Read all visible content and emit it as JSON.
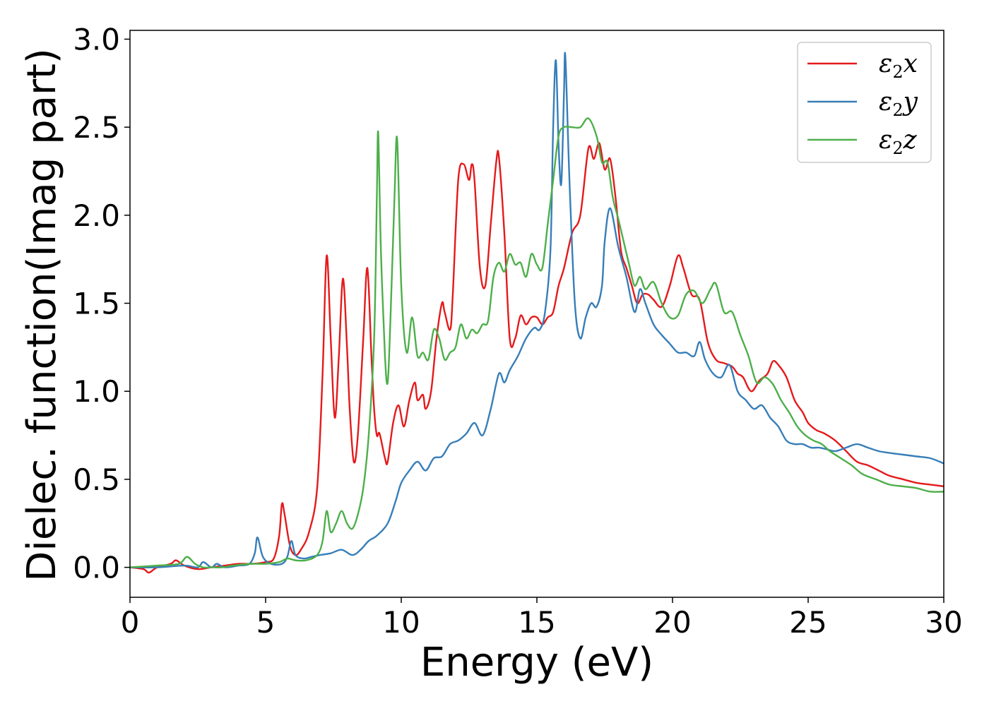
{
  "chart_data": {
    "type": "line",
    "xlabel": "Energy (eV)",
    "ylabel": "Dielec. function(Imag part)",
    "xlim": [
      0,
      30
    ],
    "ylim": [
      -0.17,
      3.05
    ],
    "xticks": [
      "0",
      "5",
      "10",
      "15",
      "20",
      "25",
      "30"
    ],
    "yticks": [
      "0.0",
      "0.5",
      "1.0",
      "1.5",
      "2.0",
      "2.5",
      "3.0"
    ],
    "grid": false,
    "legend_position": "top-right",
    "series": [
      {
        "name": "ε₂x",
        "legend_base": "ε",
        "legend_sub": "2",
        "legend_var": "x",
        "color": "#e41a1c",
        "x": [
          0,
          0.5,
          0.7,
          1.0,
          1.5,
          1.7,
          2.0,
          2.5,
          3.0,
          3.5,
          4.0,
          4.5,
          5.0,
          5.3,
          5.5,
          5.6,
          5.7,
          5.9,
          6.1,
          6.3,
          6.6,
          6.9,
          7.1,
          7.25,
          7.4,
          7.55,
          7.7,
          7.85,
          8.0,
          8.1,
          8.25,
          8.4,
          8.6,
          8.75,
          8.9,
          9.0,
          9.1,
          9.2,
          9.4,
          9.5,
          9.7,
          9.9,
          10.1,
          10.3,
          10.5,
          10.6,
          10.8,
          10.9,
          11.1,
          11.3,
          11.5,
          11.6,
          11.8,
          11.9,
          12.1,
          12.3,
          12.5,
          12.6,
          12.7,
          12.9,
          13.1,
          13.3,
          13.5,
          13.6,
          13.8,
          14.0,
          14.2,
          14.4,
          14.6,
          14.8,
          15.0,
          15.2,
          15.4,
          15.6,
          15.8,
          16.0,
          16.3,
          16.6,
          16.9,
          17.1,
          17.3,
          17.5,
          17.7,
          17.9,
          18.1,
          18.3,
          18.5,
          18.7,
          18.9,
          19.1,
          19.3,
          19.6,
          19.9,
          20.2,
          20.4,
          20.7,
          21.0,
          21.3,
          21.6,
          21.9,
          22.2,
          22.4,
          22.6,
          22.9,
          23.2,
          23.5,
          23.7,
          23.9,
          24.2,
          24.5,
          24.8,
          25.0,
          25.3,
          25.6,
          26.0,
          26.4,
          26.8,
          27.2,
          27.6,
          28.0,
          28.5,
          29.0,
          29.5,
          30.0
        ],
        "y": [
          0.0,
          -0.01,
          -0.03,
          0.0,
          0.02,
          0.04,
          0.01,
          -0.01,
          0.0,
          0.01,
          0.02,
          0.02,
          0.03,
          0.05,
          0.18,
          0.36,
          0.3,
          0.12,
          0.07,
          0.1,
          0.2,
          0.45,
          1.1,
          1.77,
          1.3,
          0.85,
          1.2,
          1.64,
          1.25,
          0.9,
          0.6,
          0.75,
          1.3,
          1.7,
          1.2,
          0.9,
          0.75,
          0.76,
          0.62,
          0.6,
          0.82,
          0.92,
          0.8,
          0.95,
          1.05,
          0.95,
          0.98,
          0.9,
          1.0,
          1.3,
          1.5,
          1.45,
          1.35,
          1.55,
          2.2,
          2.29,
          2.2,
          2.29,
          2.2,
          1.7,
          1.6,
          1.95,
          2.3,
          2.33,
          1.9,
          1.3,
          1.3,
          1.43,
          1.38,
          1.42,
          1.42,
          1.38,
          1.42,
          1.45,
          1.6,
          1.7,
          1.9,
          2.0,
          2.38,
          2.32,
          2.41,
          2.26,
          2.32,
          2.1,
          1.8,
          1.7,
          1.6,
          1.5,
          1.55,
          1.55,
          1.52,
          1.48,
          1.6,
          1.77,
          1.7,
          1.55,
          1.52,
          1.28,
          1.18,
          1.16,
          1.14,
          1.1,
          1.08,
          1.0,
          1.06,
          1.1,
          1.17,
          1.15,
          1.08,
          0.95,
          0.88,
          0.82,
          0.78,
          0.76,
          0.72,
          0.66,
          0.6,
          0.58,
          0.55,
          0.52,
          0.5,
          0.48,
          0.47,
          0.46
        ]
      },
      {
        "name": "ε₂y",
        "legend_base": "ε",
        "legend_sub": "2",
        "legend_var": "y",
        "color": "#377eb8",
        "x": [
          0,
          1.0,
          2.0,
          2.5,
          2.7,
          3.0,
          3.2,
          3.5,
          4.0,
          4.4,
          4.6,
          4.7,
          4.9,
          5.2,
          5.6,
          5.8,
          5.95,
          6.1,
          6.4,
          6.7,
          7.0,
          7.4,
          7.8,
          8.2,
          8.5,
          8.8,
          9.1,
          9.5,
          9.8,
          10.0,
          10.3,
          10.6,
          10.9,
          11.2,
          11.5,
          11.8,
          12.1,
          12.4,
          12.7,
          13.0,
          13.3,
          13.6,
          13.8,
          14.0,
          14.3,
          14.6,
          14.9,
          15.1,
          15.3,
          15.5,
          15.6,
          15.7,
          15.8,
          15.9,
          16.0,
          16.05,
          16.2,
          16.4,
          16.6,
          16.8,
          17.0,
          17.2,
          17.4,
          17.5,
          17.7,
          18.0,
          18.3,
          18.6,
          18.8,
          19.0,
          19.3,
          19.6,
          19.9,
          20.2,
          20.5,
          20.8,
          21.0,
          21.2,
          21.5,
          21.8,
          22.1,
          22.4,
          22.7,
          23.0,
          23.3,
          23.6,
          23.9,
          24.2,
          24.5,
          24.8,
          25.1,
          25.4,
          25.7,
          26.0,
          26.4,
          26.8,
          27.2,
          27.6,
          28.0,
          28.5,
          29.0,
          29.5,
          30.0
        ],
        "y": [
          0.0,
          0.0,
          0.01,
          0.0,
          0.03,
          0.0,
          0.02,
          0.0,
          0.01,
          0.02,
          0.08,
          0.17,
          0.06,
          0.02,
          0.02,
          0.06,
          0.15,
          0.07,
          0.05,
          0.06,
          0.07,
          0.08,
          0.1,
          0.07,
          0.1,
          0.15,
          0.18,
          0.25,
          0.38,
          0.48,
          0.55,
          0.6,
          0.55,
          0.62,
          0.63,
          0.7,
          0.72,
          0.76,
          0.82,
          0.75,
          0.9,
          1.1,
          1.05,
          1.12,
          1.2,
          1.3,
          1.36,
          1.35,
          1.45,
          1.8,
          2.5,
          2.88,
          2.4,
          2.18,
          2.7,
          2.9,
          2.2,
          1.5,
          1.3,
          1.42,
          1.5,
          1.48,
          1.6,
          1.85,
          2.04,
          1.82,
          1.65,
          1.45,
          1.58,
          1.5,
          1.38,
          1.32,
          1.27,
          1.22,
          1.22,
          1.2,
          1.28,
          1.18,
          1.1,
          1.08,
          1.15,
          1.0,
          0.95,
          0.9,
          0.92,
          0.85,
          0.8,
          0.72,
          0.7,
          0.7,
          0.68,
          0.68,
          0.67,
          0.66,
          0.68,
          0.7,
          0.68,
          0.66,
          0.65,
          0.64,
          0.63,
          0.62,
          0.59
        ]
      },
      {
        "name": "ε₂z",
        "legend_base": "ε",
        "legend_sub": "2",
        "legend_var": "z",
        "color": "#4daf4a",
        "x": [
          0,
          1.0,
          1.8,
          2.1,
          2.4,
          2.7,
          3.0,
          3.4,
          3.8,
          4.5,
          5.0,
          5.5,
          5.8,
          6.1,
          6.5,
          6.9,
          7.1,
          7.25,
          7.4,
          7.6,
          7.8,
          8.0,
          8.2,
          8.4,
          8.6,
          8.8,
          9.0,
          9.1,
          9.15,
          9.25,
          9.4,
          9.5,
          9.6,
          9.75,
          9.85,
          10.0,
          10.2,
          10.4,
          10.6,
          10.8,
          11.0,
          11.2,
          11.4,
          11.6,
          11.8,
          12.0,
          12.2,
          12.4,
          12.6,
          12.8,
          13.0,
          13.2,
          13.4,
          13.6,
          13.8,
          14.0,
          14.2,
          14.4,
          14.6,
          14.8,
          15.0,
          15.2,
          15.4,
          15.6,
          15.8,
          16.0,
          16.3,
          16.6,
          16.9,
          17.2,
          17.4,
          17.6,
          17.8,
          18.0,
          18.2,
          18.4,
          18.6,
          18.8,
          19.0,
          19.3,
          19.6,
          19.9,
          20.2,
          20.5,
          20.8,
          21.1,
          21.4,
          21.6,
          21.9,
          22.2,
          22.5,
          22.8,
          23.1,
          23.4,
          23.7,
          24.0,
          24.3,
          24.6,
          24.9,
          25.2,
          25.5,
          25.8,
          26.2,
          26.6,
          27.0,
          27.5,
          28.0,
          28.5,
          29.0,
          29.5,
          30.0
        ],
        "y": [
          0.0,
          0.01,
          0.02,
          0.06,
          0.02,
          0.0,
          0.0,
          0.0,
          0.01,
          0.02,
          0.02,
          0.03,
          0.05,
          0.04,
          0.04,
          0.07,
          0.15,
          0.32,
          0.2,
          0.25,
          0.32,
          0.25,
          0.22,
          0.3,
          0.45,
          0.75,
          1.3,
          2.1,
          2.47,
          1.8,
          1.2,
          1.05,
          1.4,
          2.1,
          2.43,
          1.6,
          1.22,
          1.42,
          1.2,
          1.22,
          1.18,
          1.35,
          1.3,
          1.18,
          1.22,
          1.25,
          1.38,
          1.3,
          1.35,
          1.33,
          1.38,
          1.4,
          1.65,
          1.73,
          1.68,
          1.78,
          1.72,
          1.73,
          1.65,
          1.78,
          1.72,
          1.7,
          1.95,
          2.2,
          2.45,
          2.5,
          2.5,
          2.5,
          2.55,
          2.45,
          2.3,
          2.3,
          2.1,
          1.98,
          1.85,
          1.72,
          1.6,
          1.65,
          1.58,
          1.62,
          1.5,
          1.42,
          1.43,
          1.55,
          1.57,
          1.5,
          1.58,
          1.61,
          1.45,
          1.45,
          1.32,
          1.2,
          1.05,
          1.08,
          1.04,
          0.95,
          0.88,
          0.8,
          0.75,
          0.72,
          0.7,
          0.66,
          0.62,
          0.58,
          0.53,
          0.5,
          0.47,
          0.46,
          0.45,
          0.43,
          0.43
        ]
      }
    ]
  }
}
